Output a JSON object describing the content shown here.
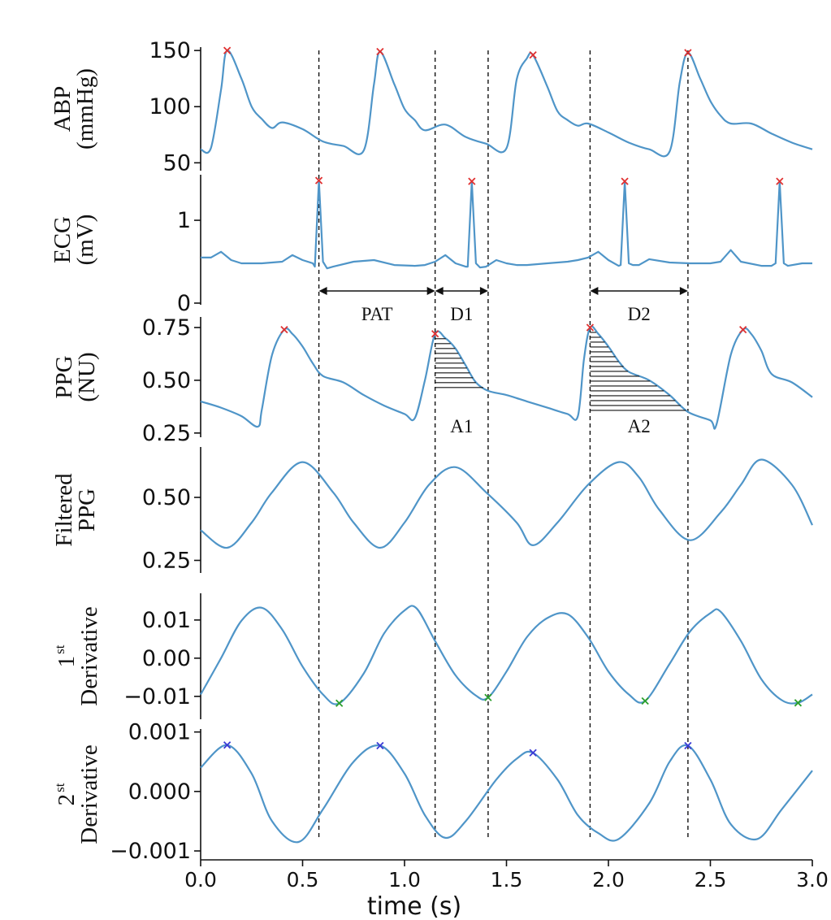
{
  "chart_data": {
    "type": "line",
    "x_label": "time (s)",
    "x_ticks": [
      "0.0",
      "0.5",
      "1.0",
      "1.5",
      "2.0",
      "2.5",
      "3.0"
    ],
    "x_range": [
      0,
      3
    ],
    "marker_times_s": [
      0.58,
      1.15,
      1.41,
      1.91,
      2.39
    ],
    "colors": {
      "trace": "#4f95c8",
      "peak_marker_red": "#e03030",
      "min_marker_green": "#2ca02c",
      "peak_marker_blue": "#3b3bd6"
    },
    "panels": [
      {
        "id": "abp",
        "ylabel_lines": [
          "ABP",
          "(mmHg)"
        ],
        "y_ticks": [
          "50",
          "100",
          "150"
        ],
        "tick_values": [
          50,
          100,
          150
        ],
        "y_range": [
          43,
          153
        ],
        "x": [
          0,
          0.05,
          0.1,
          0.13,
          0.2,
          0.25,
          0.3,
          0.35,
          0.4,
          0.5,
          0.6,
          0.7,
          0.8,
          0.85,
          0.88,
          0.95,
          1.0,
          1.05,
          1.1,
          1.2,
          1.3,
          1.4,
          1.5,
          1.55,
          1.6,
          1.63,
          1.7,
          1.75,
          1.8,
          1.85,
          1.9,
          2.0,
          2.1,
          2.2,
          2.3,
          2.35,
          2.39,
          2.45,
          2.5,
          2.55,
          2.6,
          2.7,
          2.8,
          2.9,
          3.0
        ],
        "values": [
          62,
          63,
          115,
          150,
          125,
          100,
          89,
          81,
          86,
          80,
          69,
          65,
          61,
          120,
          149,
          120,
          98,
          88,
          79,
          84,
          73,
          67,
          63,
          124,
          143,
          146,
          118,
          96,
          88,
          83,
          85,
          77,
          68,
          62,
          60,
          122,
          148,
          125,
          105,
          92,
          85,
          85,
          76,
          68,
          62
        ],
        "markers": [
          {
            "x": 0.13,
            "y": 150,
            "color": "red"
          },
          {
            "x": 0.88,
            "y": 149,
            "color": "red"
          },
          {
            "x": 1.63,
            "y": 146,
            "color": "red"
          },
          {
            "x": 2.39,
            "y": 148,
            "color": "red"
          }
        ]
      },
      {
        "id": "ecg",
        "ylabel_lines": [
          "ECG",
          "(mV)"
        ],
        "y_ticks": [
          "0",
          "1"
        ],
        "tick_values": [
          0,
          1
        ],
        "y_range": [
          -0.02,
          1.55
        ],
        "x": [
          0,
          0.05,
          0.1,
          0.15,
          0.2,
          0.3,
          0.4,
          0.45,
          0.5,
          0.55,
          0.56,
          0.58,
          0.6,
          0.62,
          0.65,
          0.75,
          0.85,
          0.95,
          1.05,
          1.1,
          1.15,
          1.2,
          1.25,
          1.3,
          1.31,
          1.33,
          1.35,
          1.37,
          1.4,
          1.45,
          1.5,
          1.55,
          1.6,
          1.7,
          1.8,
          1.85,
          1.9,
          1.95,
          2.0,
          2.05,
          2.06,
          2.08,
          2.1,
          2.12,
          2.15,
          2.2,
          2.3,
          2.4,
          2.5,
          2.55,
          2.6,
          2.65,
          2.75,
          2.8,
          2.82,
          2.84,
          2.86,
          2.88,
          2.95,
          3.0
        ],
        "values": [
          0.55,
          0.55,
          0.62,
          0.52,
          0.48,
          0.48,
          0.5,
          0.58,
          0.52,
          0.48,
          0.44,
          1.48,
          0.5,
          0.42,
          0.44,
          0.5,
          0.52,
          0.46,
          0.45,
          0.46,
          0.5,
          0.58,
          0.48,
          0.44,
          0.44,
          1.47,
          0.48,
          0.43,
          0.44,
          0.52,
          0.48,
          0.46,
          0.46,
          0.48,
          0.5,
          0.52,
          0.55,
          0.62,
          0.52,
          0.45,
          0.46,
          1.47,
          0.48,
          0.46,
          0.46,
          0.53,
          0.49,
          0.48,
          0.48,
          0.5,
          0.64,
          0.5,
          0.45,
          0.45,
          0.48,
          1.47,
          0.48,
          0.45,
          0.48,
          0.48
        ],
        "markers": [
          {
            "x": 0.58,
            "y": 1.48,
            "color": "red"
          },
          {
            "x": 1.33,
            "y": 1.47,
            "color": "red"
          },
          {
            "x": 2.08,
            "y": 1.47,
            "color": "red"
          },
          {
            "x": 2.84,
            "y": 1.47,
            "color": "red"
          }
        ],
        "intervals": [
          {
            "label": "PAT",
            "from": 0.58,
            "to": 1.15
          },
          {
            "label": "D1",
            "from": 1.15,
            "to": 1.41
          },
          {
            "label": "D2",
            "from": 1.91,
            "to": 2.39
          }
        ]
      },
      {
        "id": "ppg",
        "ylabel_lines": [
          "PPG",
          "(NU)"
        ],
        "y_ticks": [
          "0.25",
          "0.50",
          "0.75"
        ],
        "tick_values": [
          0.25,
          0.5,
          0.75
        ],
        "y_range": [
          0.23,
          0.8
        ],
        "x": [
          0,
          0.1,
          0.2,
          0.28,
          0.3,
          0.35,
          0.41,
          0.45,
          0.5,
          0.55,
          0.6,
          0.7,
          0.8,
          0.9,
          1.0,
          1.05,
          1.1,
          1.15,
          1.2,
          1.25,
          1.3,
          1.35,
          1.41,
          1.5,
          1.6,
          1.7,
          1.8,
          1.85,
          1.88,
          1.91,
          1.95,
          2.0,
          2.05,
          2.1,
          2.2,
          2.3,
          2.39,
          2.5,
          2.53,
          2.6,
          2.66,
          2.7,
          2.75,
          2.8,
          2.9,
          3.0
        ],
        "values": [
          0.4,
          0.37,
          0.33,
          0.28,
          0.36,
          0.62,
          0.74,
          0.72,
          0.66,
          0.58,
          0.52,
          0.49,
          0.43,
          0.38,
          0.34,
          0.32,
          0.5,
          0.72,
          0.7,
          0.65,
          0.57,
          0.49,
          0.45,
          0.43,
          0.4,
          0.37,
          0.34,
          0.33,
          0.6,
          0.75,
          0.72,
          0.66,
          0.59,
          0.54,
          0.5,
          0.43,
          0.35,
          0.31,
          0.29,
          0.62,
          0.74,
          0.72,
          0.64,
          0.53,
          0.49,
          0.42
        ],
        "markers": [
          {
            "x": 0.41,
            "y": 0.74,
            "color": "red"
          },
          {
            "x": 1.15,
            "y": 0.72,
            "color": "red"
          },
          {
            "x": 1.91,
            "y": 0.75,
            "color": "red"
          },
          {
            "x": 2.66,
            "y": 0.74,
            "color": "red"
          }
        ],
        "shaded_areas": [
          {
            "label": "A1",
            "from": 1.15,
            "to": 1.41
          },
          {
            "label": "A2",
            "from": 1.91,
            "to": 2.39
          }
        ]
      },
      {
        "id": "filtered",
        "ylabel_lines": [
          "Filtered",
          "PPG"
        ],
        "y_ticks": [
          "0.25",
          "0.50"
        ],
        "tick_values": [
          0.25,
          0.5
        ],
        "y_range": [
          0.2,
          0.7
        ],
        "x": [
          0,
          0.13,
          0.25,
          0.35,
          0.5,
          0.65,
          0.75,
          0.88,
          1.0,
          1.12,
          1.25,
          1.4,
          1.55,
          1.63,
          1.75,
          1.9,
          2.05,
          2.15,
          2.25,
          2.4,
          2.55,
          2.65,
          2.75,
          2.9,
          3.0
        ],
        "values": [
          0.37,
          0.3,
          0.4,
          0.52,
          0.64,
          0.52,
          0.4,
          0.3,
          0.4,
          0.55,
          0.62,
          0.52,
          0.4,
          0.31,
          0.4,
          0.55,
          0.64,
          0.58,
          0.45,
          0.33,
          0.44,
          0.55,
          0.65,
          0.55,
          0.39
        ]
      },
      {
        "id": "first_derivative",
        "ylabel_lines": [
          "1st",
          "Derivative"
        ],
        "ylabel_sup": "st",
        "y_ticks": [
          "−0.01",
          "0.00",
          "0.01"
        ],
        "tick_values": [
          -0.01,
          0,
          0.01
        ],
        "y_range": [
          -0.016,
          0.017
        ],
        "x": [
          0,
          0.1,
          0.2,
          0.3,
          0.4,
          0.5,
          0.6,
          0.68,
          0.8,
          0.9,
          1.0,
          1.06,
          1.15,
          1.25,
          1.35,
          1.41,
          1.5,
          1.6,
          1.7,
          1.8,
          1.9,
          2.0,
          2.1,
          2.18,
          2.3,
          2.4,
          2.5,
          2.55,
          2.65,
          2.75,
          2.85,
          2.93,
          3.0
        ],
        "values": [
          -0.0095,
          0.0,
          0.0098,
          0.0132,
          0.0075,
          -0.0022,
          -0.0095,
          -0.0118,
          -0.004,
          0.0065,
          0.0125,
          0.013,
          0.0045,
          -0.0045,
          -0.0098,
          -0.0103,
          -0.0035,
          0.0055,
          0.0105,
          0.0115,
          0.0055,
          -0.0035,
          -0.0095,
          -0.0112,
          -0.0015,
          0.007,
          0.0118,
          0.0122,
          0.0045,
          -0.0055,
          -0.011,
          -0.0117,
          -0.0095
        ],
        "markers": [
          {
            "x": 0.68,
            "y": -0.0118,
            "color": "green"
          },
          {
            "x": 1.41,
            "y": -0.0103,
            "color": "green"
          },
          {
            "x": 2.18,
            "y": -0.0112,
            "color": "green"
          },
          {
            "x": 2.93,
            "y": -0.0117,
            "color": "green"
          }
        ]
      },
      {
        "id": "second_derivative",
        "ylabel_lines": [
          "2st",
          "Derivative"
        ],
        "ylabel_sup": "st",
        "y_ticks": [
          "−0.001",
          "0.000",
          "0.001"
        ],
        "tick_values": [
          -0.001,
          0,
          0.001
        ],
        "y_range": [
          -0.00115,
          0.00105
        ],
        "x": [
          0,
          0.13,
          0.25,
          0.35,
          0.48,
          0.6,
          0.75,
          0.88,
          1.0,
          1.1,
          1.2,
          1.3,
          1.45,
          1.55,
          1.63,
          1.75,
          1.85,
          1.95,
          2.05,
          2.2,
          2.3,
          2.39,
          2.5,
          2.6,
          2.73,
          2.85,
          3.0
        ],
        "values": [
          0.0004,
          0.00078,
          0.0003,
          -0.0005,
          -0.00085,
          -0.0003,
          0.0005,
          0.00077,
          0.0003,
          -0.0004,
          -0.00078,
          -0.0005,
          0.0002,
          0.00055,
          0.00065,
          0.0002,
          -0.0004,
          -0.0007,
          -0.0008,
          -0.0002,
          0.0005,
          0.00077,
          0.0002,
          -0.00055,
          -0.0008,
          -0.0003,
          0.00035
        ],
        "markers": [
          {
            "x": 0.13,
            "y": 0.00078,
            "color": "blue"
          },
          {
            "x": 0.88,
            "y": 0.00077,
            "color": "blue"
          },
          {
            "x": 1.63,
            "y": 0.00065,
            "color": "blue"
          },
          {
            "x": 2.39,
            "y": 0.00077,
            "color": "blue"
          }
        ]
      }
    ]
  }
}
